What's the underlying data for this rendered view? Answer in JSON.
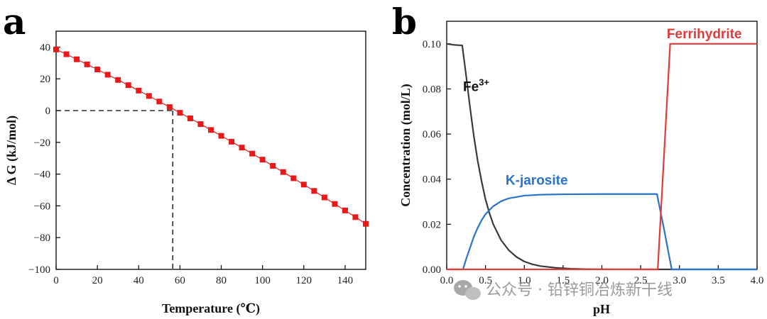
{
  "chart_data": [
    {
      "panel": "a",
      "type": "scatter",
      "title": "",
      "xlabel": "Temperature (℃)",
      "ylabel": "Δ G (kJ/mol)",
      "xlim": [
        0,
        150
      ],
      "ylim": [
        -100,
        50
      ],
      "xticks": [
        "0",
        "20",
        "40",
        "60",
        "80",
        "100",
        "120",
        "140"
      ],
      "xtick_values": [
        0,
        20,
        40,
        60,
        80,
        100,
        120,
        140
      ],
      "yticks": [
        "40",
        "20",
        "0",
        "−20",
        "−40",
        "−60",
        "−80",
        "−100"
      ],
      "ytick_values": [
        40,
        20,
        0,
        -20,
        -40,
        -60,
        -80,
        -100
      ],
      "series": [
        {
          "name": "ΔG",
          "color": "#e8191b",
          "marker": "square",
          "x": [
            0,
            5,
            10,
            15,
            20,
            25,
            30,
            35,
            40,
            45,
            50,
            55,
            60,
            65,
            70,
            75,
            80,
            85,
            90,
            95,
            100,
            105,
            110,
            115,
            120,
            125,
            130,
            135,
            140,
            145,
            150
          ],
          "y": [
            38.5,
            35.5,
            32.3,
            29.1,
            25.9,
            22.6,
            19.3,
            16.0,
            12.6,
            9.2,
            5.7,
            2.2,
            -1.4,
            -4.9,
            -8.5,
            -12.2,
            -15.9,
            -19.6,
            -23.3,
            -27.1,
            -30.9,
            -34.8,
            -38.7,
            -42.6,
            -46.6,
            -50.6,
            -54.7,
            -58.8,
            -62.9,
            -67.1,
            -71.3
          ]
        }
      ],
      "reference_lines": {
        "zero_crossing_x": 56.5,
        "y": 0,
        "style": "dashed"
      }
    },
    {
      "panel": "b",
      "type": "line",
      "title": "",
      "xlabel": "pH",
      "ylabel": "Concentration (mol/L)",
      "xlim": [
        0,
        4
      ],
      "ylim": [
        0,
        0.11
      ],
      "xticks": [
        "0.0",
        "0.5",
        "1.0",
        "1.5",
        "2.0",
        "2.5",
        "3.0",
        "3.5",
        "4.0"
      ],
      "xtick_values": [
        0,
        0.5,
        1,
        1.5,
        2,
        2.5,
        3,
        3.5,
        4
      ],
      "yticks": [
        "0.00",
        "0.02",
        "0.04",
        "0.06",
        "0.08",
        "0.10"
      ],
      "ytick_values": [
        0,
        0.02,
        0.04,
        0.06,
        0.08,
        0.1
      ],
      "series": [
        {
          "name": "Fe3+",
          "label_main": "Fe",
          "label_sup": "3+",
          "label_at": [
            0.38,
            0.079
          ],
          "color": "#3a3a3a",
          "x": [
            0,
            0.1,
            0.2,
            0.25,
            0.3,
            0.35,
            0.4,
            0.45,
            0.5,
            0.55,
            0.6,
            0.7,
            0.8,
            0.9,
            1.0,
            1.1,
            1.2,
            1.4,
            1.6,
            1.8,
            2.0,
            2.2,
            2.5,
            2.75,
            3.0,
            3.5,
            4.0
          ],
          "y": [
            0.1,
            0.0995,
            0.0993,
            0.086,
            0.072,
            0.059,
            0.048,
            0.039,
            0.031,
            0.025,
            0.02,
            0.013,
            0.0085,
            0.0055,
            0.0035,
            0.0023,
            0.0015,
            0.0007,
            0.0003,
            0.0001,
            5e-05,
            2e-05,
            1e-05,
            0,
            0,
            0,
            0
          ]
        },
        {
          "name": "K-jarosite",
          "label_main": "K-jarosite",
          "label_sup": "",
          "label_at": [
            1.16,
            0.0375
          ],
          "color": "#2a73c8",
          "x": [
            0,
            0.21,
            0.25,
            0.3,
            0.35,
            0.4,
            0.45,
            0.5,
            0.6,
            0.7,
            0.8,
            1.0,
            1.2,
            1.5,
            2.0,
            2.5,
            2.71,
            2.8,
            2.9,
            3.0,
            3.5,
            4.0
          ],
          "y": [
            0,
            0,
            0.0045,
            0.0095,
            0.0145,
            0.0185,
            0.0218,
            0.0245,
            0.028,
            0.0302,
            0.0315,
            0.0327,
            0.0331,
            0.0333,
            0.0334,
            0.0334,
            0.0334,
            0.018,
            0,
            0,
            0,
            0
          ]
        },
        {
          "name": "Ferrihydrite",
          "label_main": "Ferrihydrite",
          "label_sup": "",
          "label_at": [
            3.32,
            0.1025
          ],
          "color": "#e03b3b",
          "x": [
            0,
            2.69,
            2.72,
            2.76,
            2.8,
            2.84,
            2.88,
            3.0,
            3.5,
            4.0
          ],
          "y": [
            0,
            0,
            0.0,
            0.025,
            0.05,
            0.075,
            0.1,
            0.1,
            0.1,
            0.1
          ]
        }
      ]
    }
  ],
  "watermark": {
    "text": "公众号 · 铅锌铜冶炼新干线"
  }
}
